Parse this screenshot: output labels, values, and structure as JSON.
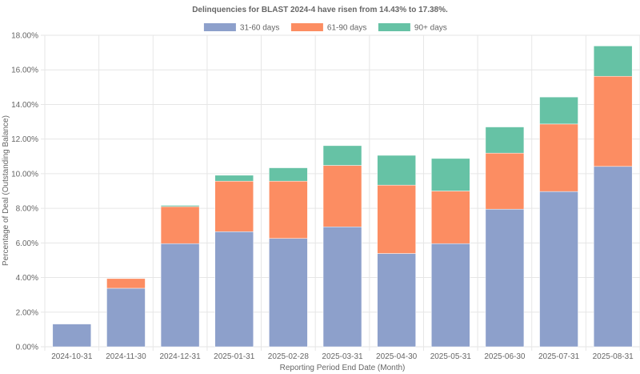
{
  "chart_data": {
    "type": "bar",
    "stacked": true,
    "title": "Delinquencies for BLAST 2024-4 have risen from 14.43% to 17.38%.",
    "xlabel": "Reporting Period End Date (Month)",
    "ylabel": "Percentage of Deal (Outstanding Balance)",
    "ylim": [
      0,
      18
    ],
    "yticks": [
      "0.00%",
      "2.00%",
      "4.00%",
      "6.00%",
      "8.00%",
      "10.00%",
      "12.00%",
      "14.00%",
      "16.00%",
      "18.00%"
    ],
    "grid": true,
    "legend_position": "top-center",
    "categories": [
      "2024-10-31",
      "2024-11-30",
      "2024-12-31",
      "2025-01-31",
      "2025-02-28",
      "2025-03-31",
      "2025-04-30",
      "2025-05-31",
      "2025-06-30",
      "2025-07-31",
      "2025-08-31"
    ],
    "series": [
      {
        "name": "31-60 days",
        "color": "#8da0cb",
        "values": [
          1.32,
          3.38,
          5.96,
          6.65,
          6.26,
          6.93,
          5.39,
          5.96,
          7.95,
          8.97,
          10.42
        ]
      },
      {
        "name": "61-90 days",
        "color": "#fc8d62",
        "values": [
          0.01,
          0.56,
          2.14,
          2.92,
          3.31,
          3.55,
          3.95,
          3.04,
          3.24,
          3.9,
          5.21
        ]
      },
      {
        "name": "90+ days",
        "color": "#66c2a5",
        "values": [
          0.0,
          0.0,
          0.07,
          0.34,
          0.77,
          1.14,
          1.72,
          1.88,
          1.51,
          1.56,
          1.75
        ]
      }
    ]
  }
}
